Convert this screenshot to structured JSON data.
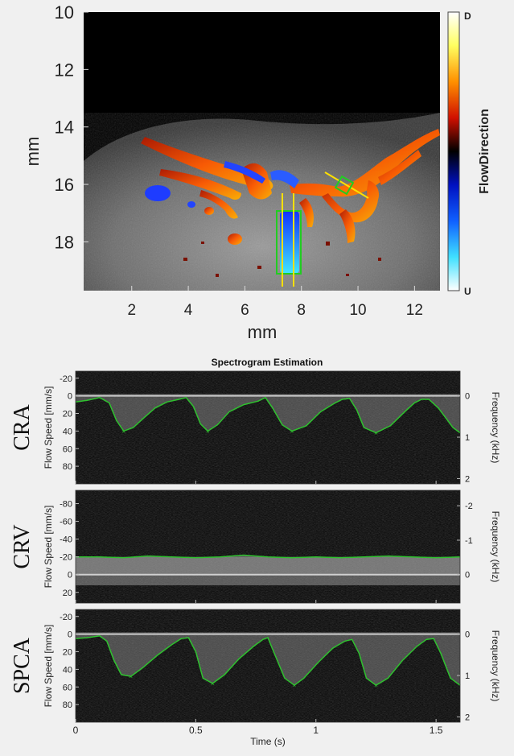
{
  "doppler": {
    "yticks": [
      "10",
      "12",
      "14",
      "16",
      "18"
    ],
    "xticks": [
      "2",
      "4",
      "6",
      "8",
      "10",
      "12"
    ],
    "xlabel": "mm",
    "ylabel": "mm",
    "colorbar": {
      "label": "FlowDirection",
      "top": "D",
      "bottom": "U"
    }
  },
  "spectrogram": {
    "title": "Spectrogram Estimation",
    "xlabel": "Time (s)",
    "xticks": [
      "0",
      "0.5",
      "1",
      "1.5"
    ],
    "left_axis_label": "Flow Speed [mm/s]",
    "right_axis_label": "Frequency (kHz)"
  },
  "colors": {
    "envelope": "#2ec12e",
    "hot_flow": "#ff4a00",
    "cold_flow": "#1e3cff",
    "roi_green": "#22cc22",
    "roi_yellow": "#ffe000"
  },
  "chart_data": [
    {
      "type": "heatmap",
      "title": "",
      "xlabel": "mm",
      "ylabel": "mm",
      "xlim": [
        0.3,
        12.9
      ],
      "ylim": [
        19.7,
        10
      ],
      "y_reversed": true,
      "xticks": [
        2,
        4,
        6,
        8,
        10,
        12
      ],
      "yticks": [
        10,
        12,
        14,
        16,
        18
      ],
      "colorbar": {
        "label": "FlowDirection",
        "max_label": "D",
        "min_label": "U"
      }
    },
    {
      "type": "line",
      "panel": "CRA",
      "ylabel": "Flow Speed [mm/s]",
      "y2label": "Frequency (kHz)",
      "ylim": [
        -28,
        100
      ],
      "y_reversed": true,
      "yticks": [
        -20,
        0,
        20,
        40,
        60,
        80
      ],
      "y2ticks": [
        0,
        1,
        2
      ],
      "xlim": [
        0,
        1.6
      ],
      "series": [
        {
          "x": [
            0,
            0.05,
            0.1,
            0.14,
            0.17,
            0.2,
            0.24,
            0.28,
            0.33,
            0.38,
            0.43,
            0.46,
            0.49,
            0.52,
            0.55,
            0.59,
            0.64,
            0.7,
            0.76,
            0.79,
            0.82,
            0.86,
            0.9,
            0.96,
            1.02,
            1.08,
            1.11,
            1.14,
            1.17,
            1.2,
            1.25,
            1.31,
            1.37,
            1.41,
            1.44,
            1.47,
            1.51,
            1.57,
            1.6
          ],
          "y": [
            7,
            5,
            2,
            8,
            28,
            40,
            36,
            26,
            14,
            7,
            4,
            2,
            12,
            32,
            40,
            33,
            18,
            10,
            6,
            2,
            14,
            33,
            40,
            34,
            18,
            8,
            4,
            3,
            16,
            36,
            42,
            34,
            18,
            8,
            4,
            4,
            14,
            36,
            42
          ]
        }
      ]
    },
    {
      "type": "line",
      "panel": "CRV",
      "ylabel": "Flow Speed [mm/s]",
      "y2label": "Frequency (kHz)",
      "ylim": [
        -95,
        32
      ],
      "y_reversed": true,
      "yticks": [
        -80,
        -60,
        -40,
        -20,
        0,
        20
      ],
      "y2ticks": [
        -2,
        -1,
        0
      ],
      "xlim": [
        0,
        1.6
      ],
      "series": [
        {
          "x": [
            0,
            0.1,
            0.2,
            0.3,
            0.4,
            0.5,
            0.6,
            0.7,
            0.8,
            0.9,
            1.0,
            1.1,
            1.2,
            1.3,
            1.4,
            1.5,
            1.6
          ],
          "y": [
            -20,
            -20,
            -19,
            -21,
            -20,
            -19,
            -20,
            -22,
            -20,
            -19,
            -20,
            -19,
            -20,
            -21,
            -20,
            -19,
            -20
          ]
        }
      ]
    },
    {
      "type": "line",
      "panel": "SPCA",
      "ylabel": "Flow Speed [mm/s]",
      "y2label": "Frequency (kHz)",
      "ylim": [
        -28,
        100
      ],
      "y_reversed": true,
      "yticks": [
        -20,
        0,
        20,
        40,
        60,
        80
      ],
      "y2ticks": [
        0,
        1,
        2
      ],
      "xlim": [
        0,
        1.6
      ],
      "series": [
        {
          "x": [
            0,
            0.05,
            0.1,
            0.13,
            0.16,
            0.19,
            0.23,
            0.28,
            0.34,
            0.4,
            0.44,
            0.47,
            0.5,
            0.53,
            0.57,
            0.62,
            0.68,
            0.74,
            0.78,
            0.8,
            0.83,
            0.87,
            0.91,
            0.95,
            1.01,
            1.07,
            1.12,
            1.15,
            1.18,
            1.21,
            1.25,
            1.3,
            1.36,
            1.42,
            1.46,
            1.49,
            1.52,
            1.56,
            1.6
          ],
          "y": [
            5,
            4,
            2,
            8,
            30,
            46,
            48,
            38,
            24,
            12,
            5,
            4,
            20,
            50,
            56,
            46,
            28,
            14,
            6,
            4,
            24,
            50,
            58,
            50,
            32,
            16,
            8,
            6,
            22,
            50,
            58,
            50,
            30,
            14,
            6,
            5,
            22,
            50,
            58
          ]
        }
      ]
    }
  ],
  "panels": [
    {
      "key": "CRA",
      "label": "CRA"
    },
    {
      "key": "CRV",
      "label": "CRV"
    },
    {
      "key": "SPCA",
      "label": "SPCA"
    }
  ]
}
